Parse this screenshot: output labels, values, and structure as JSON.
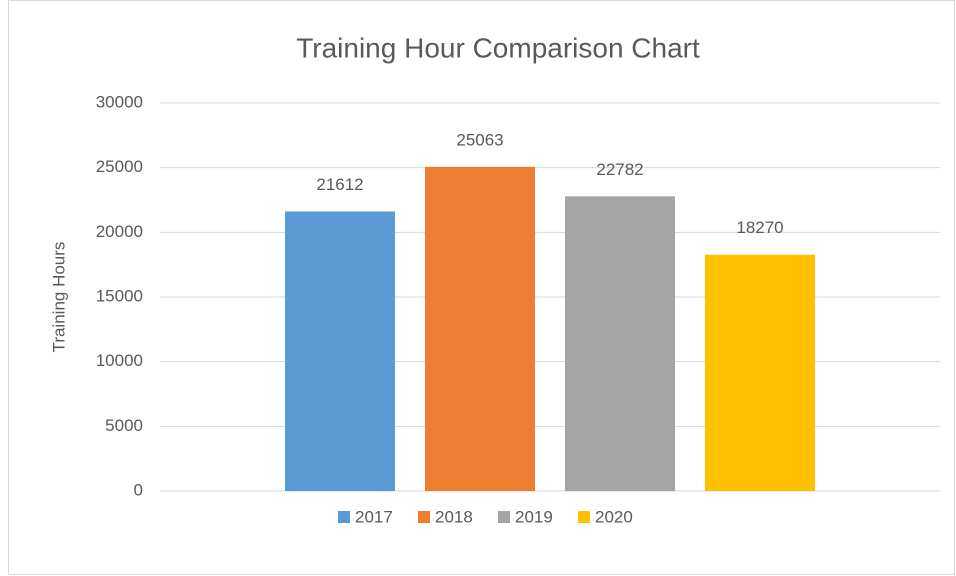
{
  "chart_data": {
    "type": "bar",
    "title": "Training Hour Comparison Chart",
    "y_label": "Training Hours",
    "categories": [
      null
    ],
    "series": [
      {
        "name": "2017",
        "color": "#5b9bd5",
        "values": [
          21612
        ]
      },
      {
        "name": "2018",
        "color": "#ed7d31",
        "values": [
          25063
        ]
      },
      {
        "name": "2019",
        "color": "#a5a5a5",
        "values": [
          22782
        ]
      },
      {
        "name": "2020",
        "color": "#ffc000",
        "values": [
          18270
        ]
      }
    ],
    "ylim": [
      0,
      30000
    ],
    "yticks": [
      0,
      5000,
      10000,
      15000,
      20000,
      25000,
      30000
    ],
    "grid": true,
    "data_labels": true,
    "legend": "bottom"
  }
}
